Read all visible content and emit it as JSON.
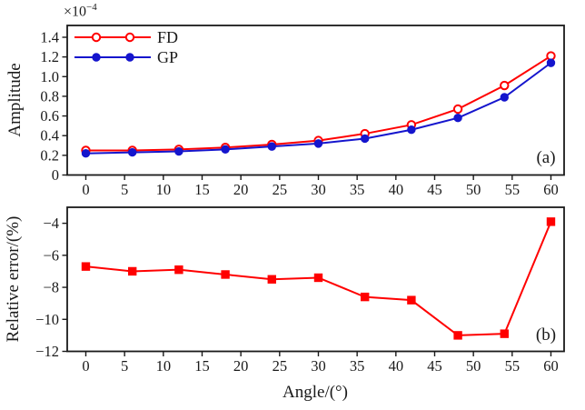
{
  "figure": {
    "background": "#ffffff",
    "frame_color": "#1a1a1a",
    "offset_label": {
      "base": "×10",
      "exponent": "−4"
    }
  },
  "chart_data": [
    {
      "type": "line",
      "panel": "a",
      "panel_tag": "(a)",
      "title": "",
      "ylabel": "Amplitude",
      "xlabel": "",
      "y_scale_note": "amplitude values are ×10⁻⁴",
      "x": [
        0,
        6,
        12,
        18,
        24,
        30,
        36,
        42,
        48,
        54,
        60
      ],
      "xlim": [
        -2.4,
        61.7
      ],
      "ylim": [
        0,
        1.52
      ],
      "xticks": [
        0,
        5,
        10,
        15,
        20,
        25,
        30,
        35,
        40,
        45,
        50,
        55,
        60
      ],
      "xtick_labels": [
        "0",
        "5",
        "10",
        "15",
        "20",
        "25",
        "30",
        "35",
        "40",
        "45",
        "50",
        "55",
        "60"
      ],
      "yticks": [
        0,
        0.2,
        0.4,
        0.6,
        0.8,
        1.0,
        1.2,
        1.4
      ],
      "ytick_labels": [
        "0",
        "0.2",
        "0.4",
        "0.6",
        "0.8",
        "1.0",
        "1.2",
        "1.4"
      ],
      "grid": false,
      "legend_position": "top-left",
      "series": [
        {
          "name": "FD",
          "color": "#ff0000",
          "marker": "circle-open",
          "values": [
            0.25,
            0.25,
            0.26,
            0.28,
            0.31,
            0.35,
            0.42,
            0.51,
            0.67,
            0.91,
            1.21
          ]
        },
        {
          "name": "GP",
          "color": "#1515cd",
          "marker": "circle-filled",
          "values": [
            0.22,
            0.23,
            0.24,
            0.26,
            0.29,
            0.32,
            0.37,
            0.46,
            0.58,
            0.79,
            1.14
          ]
        }
      ]
    },
    {
      "type": "line",
      "panel": "b",
      "panel_tag": "(b)",
      "title": "",
      "ylabel": "Relative error/(%)",
      "xlabel": "Angle/(°)",
      "x": [
        0,
        6,
        12,
        18,
        24,
        30,
        36,
        42,
        48,
        54,
        60
      ],
      "xlim": [
        -2.4,
        61.7
      ],
      "ylim": [
        -12,
        -3
      ],
      "xticks": [
        0,
        5,
        10,
        15,
        20,
        25,
        30,
        35,
        40,
        45,
        50,
        55,
        60
      ],
      "xtick_labels": [
        "0",
        "5",
        "10",
        "15",
        "20",
        "25",
        "30",
        "35",
        "40",
        "45",
        "50",
        "55",
        "60"
      ],
      "yticks": [
        -4,
        -6,
        -8,
        -10,
        -12
      ],
      "ytick_labels": [
        "−4",
        "−6",
        "−8",
        "−10",
        "−12"
      ],
      "grid": false,
      "legend_position": "none",
      "series": [
        {
          "name": "Relative error",
          "color": "#ff0000",
          "marker": "square-filled",
          "values": [
            -6.7,
            -7.0,
            -6.9,
            -7.2,
            -7.5,
            -7.4,
            -8.6,
            -8.8,
            -11.0,
            -10.9,
            -3.9
          ]
        }
      ]
    }
  ]
}
